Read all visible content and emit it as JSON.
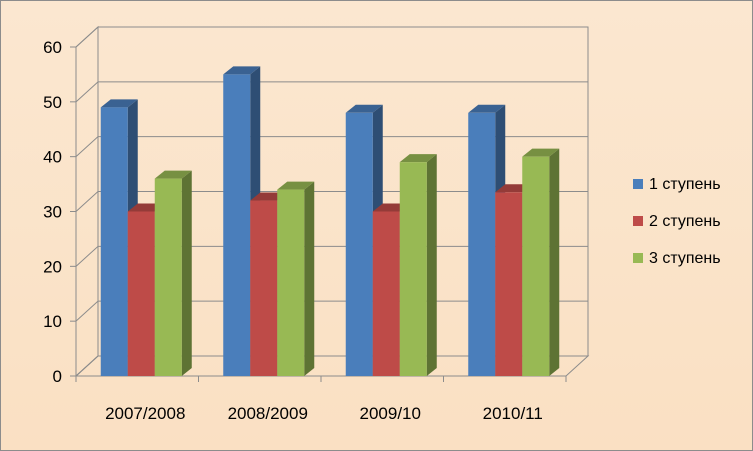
{
  "chart_data": {
    "type": "bar",
    "categories": [
      "2007/2008",
      "2008/2009",
      "2009/10",
      "2010/11"
    ],
    "series": [
      {
        "name": "1 ступень",
        "values": [
          49,
          55,
          48,
          48
        ],
        "color": "#4a7ebb"
      },
      {
        "name": "2 ступень",
        "values": [
          30,
          32,
          30,
          33.5
        ],
        "color": "#be4b48"
      },
      {
        "name": "3 ступень",
        "values": [
          36,
          34,
          39,
          40
        ],
        "color": "#98b954"
      }
    ],
    "ylim": [
      0,
      60
    ],
    "yticks": [
      0,
      10,
      20,
      30,
      40,
      50,
      60
    ],
    "grid": true,
    "legend_position": "right",
    "style": "3d-clustered-column"
  }
}
